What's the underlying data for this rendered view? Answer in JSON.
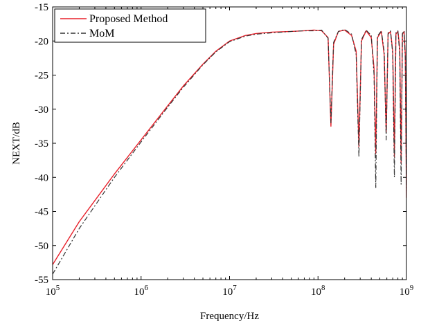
{
  "chart_data": {
    "type": "line",
    "title": "",
    "xlabel": "Frequency/Hz",
    "ylabel": "NEXT/dB",
    "x_scale": "log",
    "xlim": [
      100000,
      1000000000
    ],
    "ylim": [
      -55,
      -15
    ],
    "x_ticks": [
      {
        "value": 100000,
        "base": "10",
        "exp": "5"
      },
      {
        "value": 1000000,
        "base": "10",
        "exp": "6"
      },
      {
        "value": 10000000,
        "base": "10",
        "exp": "7"
      },
      {
        "value": 100000000,
        "base": "10",
        "exp": "8"
      },
      {
        "value": 1000000000,
        "base": "10",
        "exp": "9"
      }
    ],
    "y_ticks": [
      {
        "value": -15,
        "label": "-15"
      },
      {
        "value": -20,
        "label": "-20"
      },
      {
        "value": -25,
        "label": "-25"
      },
      {
        "value": -30,
        "label": "-30"
      },
      {
        "value": -35,
        "label": "-35"
      },
      {
        "value": -40,
        "label": "-40"
      },
      {
        "value": -45,
        "label": "-45"
      },
      {
        "value": -50,
        "label": "-50"
      },
      {
        "value": -55,
        "label": "-55"
      }
    ],
    "grid": false,
    "legend_position": "top-left",
    "series": [
      {
        "name": "Proposed Method",
        "color": "#e8202a",
        "style": "solid",
        "x": [
          100000,
          200000,
          500000,
          1000000,
          2000000,
          3000000,
          5000000,
          7000000,
          10000000,
          15000000,
          20000000,
          30000000,
          50000000,
          70000000,
          90000000,
          110000000,
          130000000,
          140000000,
          150000000,
          170000000,
          200000000,
          240000000,
          270000000,
          290000000,
          310000000,
          350000000,
          400000000,
          430000000,
          450000000,
          470000000,
          520000000,
          560000000,
          590000000,
          620000000,
          660000000,
          700000000,
          730000000,
          760000000,
          800000000,
          840000000,
          870000000,
          900000000,
          940000000,
          970000000,
          1000000000
        ],
        "y": [
          -52.8,
          -46.5,
          -39.5,
          -34.5,
          -29.5,
          -26.6,
          -23.4,
          -21.5,
          -20.0,
          -19.2,
          -18.9,
          -18.7,
          -18.6,
          -18.5,
          -18.4,
          -18.5,
          -19.5,
          -32.5,
          -20.5,
          -18.6,
          -18.4,
          -19.2,
          -21.5,
          -35.5,
          -20.0,
          -18.5,
          -19.5,
          -24.0,
          -36.5,
          -19.5,
          -18.6,
          -22.0,
          -33.5,
          -19.0,
          -18.6,
          -21.5,
          -37.0,
          -19.0,
          -18.6,
          -21.0,
          -38.0,
          -19.0,
          -18.6,
          -22.0,
          -43.0
        ]
      },
      {
        "name": "MoM",
        "color": "#333333",
        "style": "dashdot",
        "x": [
          100000,
          200000,
          500000,
          1000000,
          2000000,
          3000000,
          5000000,
          7000000,
          10000000,
          15000000,
          20000000,
          30000000,
          50000000,
          70000000,
          90000000,
          110000000,
          130000000,
          140000000,
          150000000,
          170000000,
          200000000,
          240000000,
          270000000,
          290000000,
          310000000,
          350000000,
          400000000,
          430000000,
          450000000,
          470000000,
          520000000,
          560000000,
          590000000,
          620000000,
          660000000,
          700000000,
          730000000,
          760000000,
          800000000,
          840000000,
          870000000,
          900000000,
          940000000,
          970000000,
          1000000000
        ],
        "y": [
          -54.2,
          -47.5,
          -40.0,
          -34.8,
          -29.7,
          -26.8,
          -23.5,
          -21.6,
          -20.1,
          -19.3,
          -19.0,
          -18.8,
          -18.6,
          -18.5,
          -18.5,
          -18.4,
          -19.6,
          -32.0,
          -20.2,
          -18.6,
          -18.3,
          -19.0,
          -22.0,
          -37.0,
          -19.8,
          -18.4,
          -19.2,
          -25.0,
          -41.5,
          -19.3,
          -18.5,
          -21.5,
          -34.5,
          -18.8,
          -18.5,
          -22.0,
          -40.0,
          -18.8,
          -18.5,
          -22.0,
          -41.0,
          -18.9,
          -18.5,
          -22.5,
          -42.0
        ]
      }
    ]
  }
}
